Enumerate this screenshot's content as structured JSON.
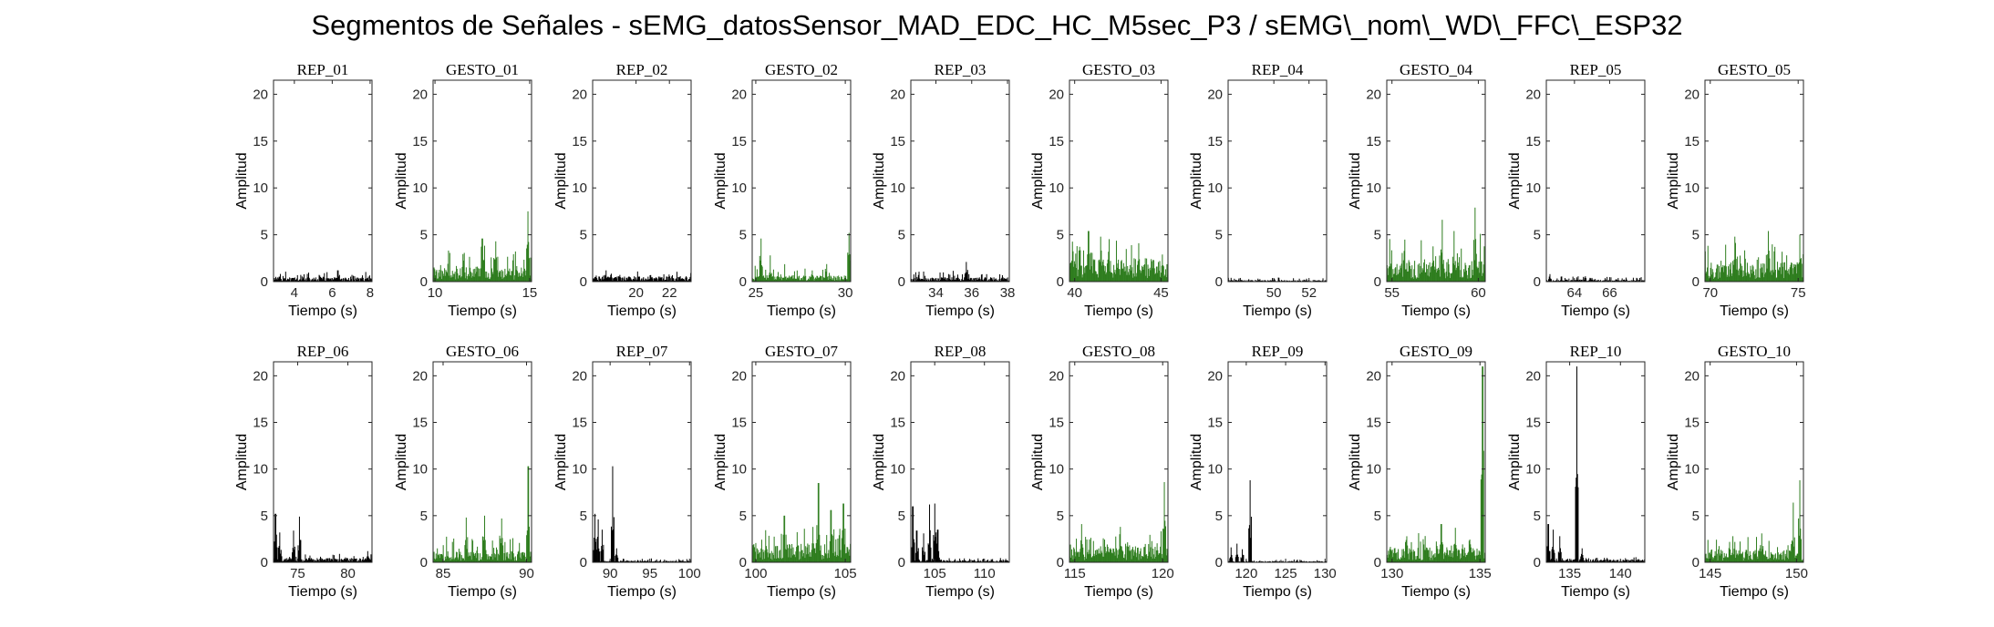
{
  "figure": {
    "title": "Segmentos de Señales - sEMG_datosSensor_MAD_EDC_HC_M5sec_P3 / sEMG\\_nom\\_WD\\_FFC\\_ESP32",
    "colors": {
      "rep": "#000000",
      "gesto": "#2e7d1e",
      "axis": "#262626"
    }
  },
  "chart_data": [
    {
      "type": "bar",
      "title": "REP_01",
      "kind": "rep",
      "xlabel": "Tiempo (s)",
      "ylabel": "Amplitud",
      "xlim": [
        2.9,
        8.1
      ],
      "ylim": [
        0,
        21.5
      ],
      "xticks": [
        4,
        6,
        8
      ],
      "yticks": [
        0,
        5,
        10,
        15,
        20
      ],
      "series": [
        {
          "name": "",
          "base": 0.4,
          "spread": 0.7,
          "peaks": [
            [
              6.3,
              1.2
            ]
          ]
        }
      ]
    },
    {
      "type": "bar",
      "title": "GESTO_01",
      "kind": "gesto",
      "xlabel": "Tiempo (s)",
      "ylabel": "Amplitud",
      "xlim": [
        9.9,
        15.1
      ],
      "ylim": [
        0,
        21.5
      ],
      "xticks": [
        10,
        15
      ],
      "yticks": [
        0,
        5,
        10,
        15,
        20
      ],
      "series": [
        {
          "name": "",
          "base": 1.4,
          "spread": 2.8,
          "peaks": [
            [
              12.5,
              4.6
            ],
            [
              13.2,
              4.3
            ],
            [
              14.9,
              7.5
            ]
          ]
        }
      ]
    },
    {
      "type": "bar",
      "title": "REP_02",
      "kind": "rep",
      "xlabel": "Tiempo (s)",
      "ylabel": "Amplitud",
      "xlim": [
        17.4,
        23.3
      ],
      "ylim": [
        0,
        21.5
      ],
      "xticks": [
        20,
        22
      ],
      "yticks": [
        0,
        5,
        10,
        15,
        20
      ],
      "series": [
        {
          "name": "",
          "base": 0.5,
          "spread": 0.7,
          "peaks": [
            [
              18.2,
              1.2
            ]
          ]
        }
      ]
    },
    {
      "type": "bar",
      "title": "GESTO_02",
      "kind": "gesto",
      "xlabel": "Tiempo (s)",
      "ylabel": "Amplitud",
      "xlim": [
        24.8,
        30.3
      ],
      "ylim": [
        0,
        21.5
      ],
      "xticks": [
        25,
        30
      ],
      "yticks": [
        0,
        5,
        10,
        15,
        20
      ],
      "series": [
        {
          "name": "",
          "base": 0.6,
          "spread": 1.4,
          "peaks": [
            [
              25.3,
              4.6
            ],
            [
              25.8,
              2.8
            ],
            [
              30.2,
              5.2
            ]
          ]
        }
      ]
    },
    {
      "type": "bar",
      "title": "REP_03",
      "kind": "rep",
      "xlabel": "Tiempo (s)",
      "ylabel": "Amplitud",
      "xlim": [
        32.6,
        38.1
      ],
      "ylim": [
        0,
        21.5
      ],
      "xticks": [
        34,
        36,
        38
      ],
      "yticks": [
        0,
        5,
        10,
        15,
        20
      ],
      "series": [
        {
          "name": "",
          "base": 0.4,
          "spread": 0.7,
          "peaks": [
            [
              35.7,
              2.1
            ]
          ]
        }
      ]
    },
    {
      "type": "bar",
      "title": "GESTO_03",
      "kind": "gesto",
      "xlabel": "Tiempo (s)",
      "ylabel": "Amplitud",
      "xlim": [
        39.7,
        45.4
      ],
      "ylim": [
        0,
        21.5
      ],
      "xticks": [
        40,
        45
      ],
      "yticks": [
        0,
        5,
        10,
        15,
        20
      ],
      "series": [
        {
          "name": "",
          "base": 2.2,
          "spread": 2.5,
          "peaks": [
            [
              40.8,
              5.4
            ],
            [
              41.5,
              4.8
            ],
            [
              43.7,
              4.1
            ]
          ]
        }
      ]
    },
    {
      "type": "bar",
      "title": "REP_04",
      "kind": "rep",
      "xlabel": "Tiempo (s)",
      "ylabel": "Amplitud",
      "xlim": [
        47.4,
        53.0
      ],
      "ylim": [
        0,
        21.5
      ],
      "xticks": [
        50,
        52
      ],
      "yticks": [
        0,
        5,
        10,
        15,
        20
      ],
      "series": [
        {
          "name": "",
          "base": 0.15,
          "spread": 0.3,
          "peaks": []
        }
      ]
    },
    {
      "type": "bar",
      "title": "GESTO_04",
      "kind": "gesto",
      "xlabel": "Tiempo (s)",
      "ylabel": "Amplitud",
      "xlim": [
        54.7,
        60.4
      ],
      "ylim": [
        0,
        21.5
      ],
      "xticks": [
        55,
        60
      ],
      "yticks": [
        0,
        5,
        10,
        15,
        20
      ],
      "series": [
        {
          "name": "",
          "base": 2.0,
          "spread": 3.0,
          "peaks": [
            [
              57.9,
              6.6
            ],
            [
              59.8,
              7.9
            ],
            [
              58.6,
              5.4
            ]
          ]
        }
      ]
    },
    {
      "type": "bar",
      "title": "REP_05",
      "kind": "rep",
      "xlabel": "Tiempo (s)",
      "ylabel": "Amplitud",
      "xlim": [
        62.4,
        68.0
      ],
      "ylim": [
        0,
        21.5
      ],
      "xticks": [
        64,
        66
      ],
      "yticks": [
        0,
        5,
        10,
        15,
        20
      ],
      "series": [
        {
          "name": "",
          "base": 0.2,
          "spread": 0.4,
          "peaks": [
            [
              62.6,
              0.8
            ]
          ]
        }
      ]
    },
    {
      "type": "bar",
      "title": "GESTO_05",
      "kind": "gesto",
      "xlabel": "Tiempo (s)",
      "ylabel": "Amplitud",
      "xlim": [
        69.7,
        75.3
      ],
      "ylim": [
        0,
        21.5
      ],
      "xticks": [
        70,
        75
      ],
      "yticks": [
        0,
        5,
        10,
        15,
        20
      ],
      "series": [
        {
          "name": "",
          "base": 1.8,
          "spread": 2.5,
          "peaks": [
            [
              73.3,
              5.4
            ],
            [
              75.1,
              5.0
            ],
            [
              71.4,
              4.8
            ]
          ]
        }
      ]
    },
    {
      "type": "bar",
      "title": "REP_06",
      "kind": "rep",
      "xlabel": "Tiempo (s)",
      "ylabel": "Amplitud",
      "xlim": [
        72.6,
        82.4
      ],
      "ylim": [
        0,
        21.5
      ],
      "xticks": [
        75,
        80
      ],
      "yticks": [
        0,
        5,
        10,
        15,
        20
      ],
      "series": [
        {
          "name": "",
          "base": 0.4,
          "spread": 0.6,
          "peaks": [
            [
              72.8,
              5.2
            ],
            [
              73.2,
              3.2
            ],
            [
              75.2,
              4.9
            ],
            [
              74.6,
              3.4
            ],
            [
              82.0,
              1.2
            ]
          ]
        }
      ]
    },
    {
      "type": "bar",
      "title": "GESTO_06",
      "kind": "gesto",
      "xlabel": "Tiempo (s)",
      "ylabel": "Amplitud",
      "xlim": [
        84.4,
        90.3
      ],
      "ylim": [
        0,
        21.5
      ],
      "xticks": [
        85,
        90
      ],
      "yticks": [
        0,
        5,
        10,
        15,
        20
      ],
      "series": [
        {
          "name": "",
          "base": 1.0,
          "spread": 2.2,
          "peaks": [
            [
              87.5,
              5.0
            ],
            [
              88.5,
              4.7
            ],
            [
              86.4,
              4.8
            ],
            [
              90.1,
              10.3
            ]
          ]
        }
      ]
    },
    {
      "type": "bar",
      "title": "REP_07",
      "kind": "rep",
      "xlabel": "Tiempo (s)",
      "ylabel": "Amplitud",
      "xlim": [
        87.8,
        100.2
      ],
      "ylim": [
        0,
        21.5
      ],
      "xticks": [
        90,
        95,
        100
      ],
      "yticks": [
        0,
        5,
        10,
        15,
        20
      ],
      "series": [
        {
          "name": "",
          "base": 0.15,
          "spread": 0.3,
          "peaks": [
            [
              88.1,
              5.2
            ],
            [
              88.5,
              4.6
            ],
            [
              89.0,
              3.5
            ],
            [
              90.3,
              10.3
            ],
            [
              90.8,
              1.5
            ]
          ]
        }
      ]
    },
    {
      "type": "bar",
      "title": "GESTO_07",
      "kind": "gesto",
      "xlabel": "Tiempo (s)",
      "ylabel": "Amplitud",
      "xlim": [
        99.8,
        105.3
      ],
      "ylim": [
        0,
        21.5
      ],
      "xticks": [
        100,
        105
      ],
      "yticks": [
        0,
        5,
        10,
        15,
        20
      ],
      "series": [
        {
          "name": "",
          "base": 1.8,
          "spread": 2.6,
          "peaks": [
            [
              103.5,
              8.5
            ],
            [
              104.9,
              6.3
            ],
            [
              101.6,
              5.0
            ],
            [
              104.2,
              5.6
            ]
          ]
        }
      ]
    },
    {
      "type": "bar",
      "title": "REP_08",
      "kind": "rep",
      "xlabel": "Tiempo (s)",
      "ylabel": "Amplitud",
      "xlim": [
        102.6,
        112.5
      ],
      "ylim": [
        0,
        21.5
      ],
      "xticks": [
        105,
        110
      ],
      "yticks": [
        0,
        5,
        10,
        15,
        20
      ],
      "series": [
        {
          "name": "",
          "base": 0.2,
          "spread": 0.3,
          "peaks": [
            [
              102.8,
              6.0
            ],
            [
              103.2,
              3.4
            ],
            [
              103.9,
              3.1
            ],
            [
              104.5,
              6.2
            ],
            [
              105.0,
              6.3
            ],
            [
              105.3,
              3.5
            ]
          ]
        }
      ]
    },
    {
      "type": "bar",
      "title": "GESTO_08",
      "kind": "gesto",
      "xlabel": "Tiempo (s)",
      "ylabel": "Amplitud",
      "xlim": [
        114.7,
        120.3
      ],
      "ylim": [
        0,
        21.5
      ],
      "xticks": [
        115,
        120
      ],
      "yticks": [
        0,
        5,
        10,
        15,
        20
      ],
      "series": [
        {
          "name": "",
          "base": 1.5,
          "spread": 2.0,
          "peaks": [
            [
              115.4,
              4.1
            ],
            [
              117.6,
              3.8
            ],
            [
              120.1,
              8.6
            ]
          ]
        }
      ]
    },
    {
      "type": "bar",
      "title": "REP_09",
      "kind": "rep",
      "xlabel": "Tiempo (s)",
      "ylabel": "Amplitud",
      "xlim": [
        117.7,
        130.2
      ],
      "ylim": [
        0,
        21.5
      ],
      "xticks": [
        120,
        125,
        130
      ],
      "yticks": [
        0,
        5,
        10,
        15,
        20
      ],
      "series": [
        {
          "name": "",
          "base": 0.12,
          "spread": 0.2,
          "peaks": [
            [
              118.1,
              1.6
            ],
            [
              118.8,
              2.0
            ],
            [
              119.5,
              1.4
            ],
            [
              120.5,
              8.8
            ]
          ]
        }
      ]
    },
    {
      "type": "bar",
      "title": "GESTO_09",
      "kind": "gesto",
      "xlabel": "Tiempo (s)",
      "ylabel": "Amplitud",
      "xlim": [
        129.7,
        135.3
      ],
      "ylim": [
        0,
        21.5
      ],
      "xticks": [
        130,
        135
      ],
      "yticks": [
        0,
        5,
        10,
        15,
        20
      ],
      "series": [
        {
          "name": "",
          "base": 1.4,
          "spread": 2.0,
          "peaks": [
            [
              132.8,
              4.1
            ],
            [
              133.6,
              3.7
            ],
            [
              135.15,
              21.0
            ]
          ]
        }
      ]
    },
    {
      "type": "bar",
      "title": "REP_10",
      "kind": "rep",
      "xlabel": "Tiempo (s)",
      "ylabel": "Amplitud",
      "xlim": [
        132.7,
        142.4
      ],
      "ylim": [
        0,
        21.5
      ],
      "xticks": [
        135,
        140
      ],
      "yticks": [
        0,
        5,
        10,
        15,
        20
      ],
      "series": [
        {
          "name": "",
          "base": 0.3,
          "spread": 0.4,
          "peaks": [
            [
              132.9,
              4.1
            ],
            [
              133.4,
              3.5
            ],
            [
              134.0,
              2.8
            ],
            [
              135.7,
              21.0
            ],
            [
              136.2,
              1.5
            ]
          ]
        }
      ]
    },
    {
      "type": "bar",
      "title": "GESTO_10",
      "kind": "gesto",
      "xlabel": "Tiempo (s)",
      "ylabel": "Amplitud",
      "xlim": [
        144.7,
        150.4
      ],
      "ylim": [
        0,
        21.5
      ],
      "xticks": [
        145,
        150
      ],
      "yticks": [
        0,
        5,
        10,
        15,
        20
      ],
      "series": [
        {
          "name": "",
          "base": 1.2,
          "spread": 1.6,
          "peaks": [
            [
              146.3,
              2.8
            ],
            [
              148.0,
              3.1
            ],
            [
              150.2,
              8.8
            ],
            [
              149.8,
              6.4
            ]
          ]
        }
      ]
    }
  ]
}
